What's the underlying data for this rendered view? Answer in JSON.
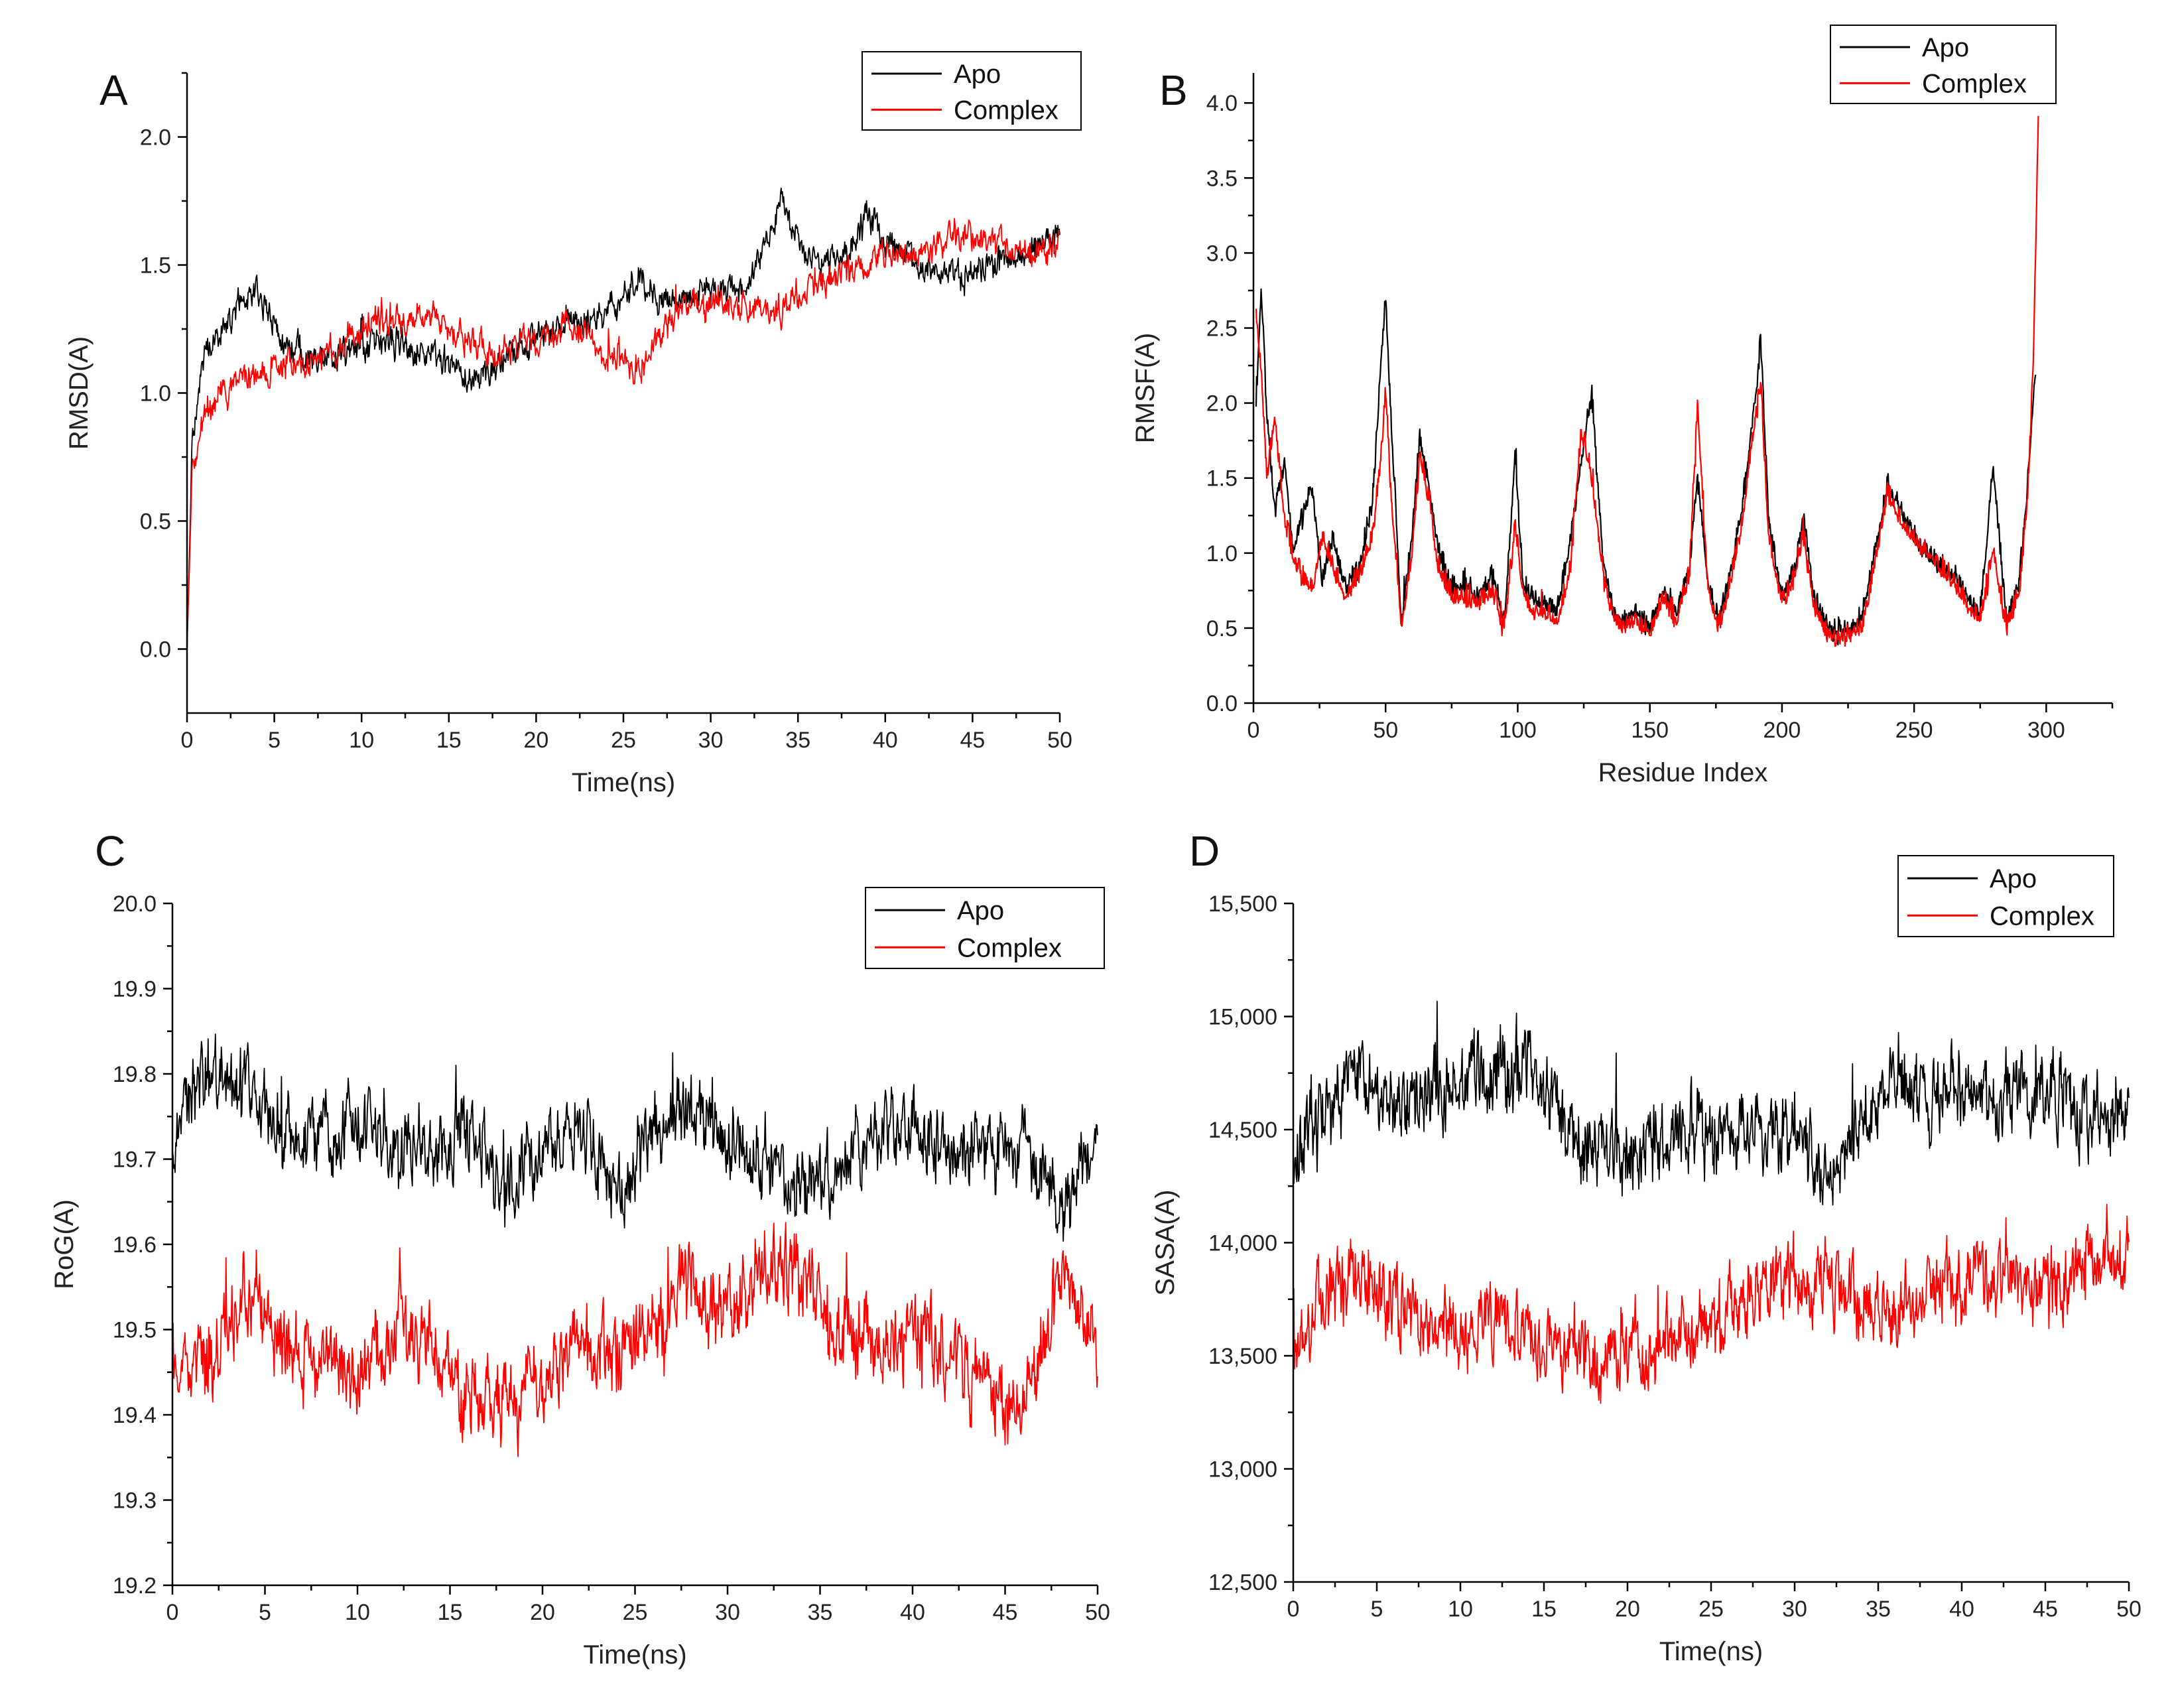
{
  "chart_data": [
    {
      "id": "A",
      "type": "line",
      "letter": "A",
      "xlabel": "Time(ns)",
      "ylabel": "RMSD(A)",
      "xlim": [
        0,
        50
      ],
      "ylim": [
        -0.25,
        2.25
      ],
      "xticks": [
        0,
        5,
        10,
        15,
        20,
        25,
        30,
        35,
        40,
        45,
        50
      ],
      "yticks": [
        0.0,
        0.5,
        1.0,
        1.5,
        2.0
      ],
      "ytick_labels": [
        "0.0",
        "0.5",
        "1.0",
        "1.5",
        "2.0"
      ],
      "legend": [
        "Apo",
        "Complex"
      ],
      "series": [
        {
          "name": "Apo",
          "color": "#000000",
          "noise": 0.06,
          "x": [
            0,
            0.3,
            1,
            2,
            3,
            4,
            5,
            6,
            8,
            10,
            12,
            14,
            16,
            18,
            20,
            22,
            24,
            26,
            27,
            28,
            30,
            32,
            33,
            34,
            35,
            36,
            38,
            39,
            40,
            42,
            44,
            46,
            48,
            50
          ],
          "y": [
            0.0,
            0.8,
            1.15,
            1.25,
            1.35,
            1.42,
            1.25,
            1.17,
            1.15,
            1.18,
            1.2,
            1.15,
            1.05,
            1.12,
            1.22,
            1.28,
            1.3,
            1.45,
            1.38,
            1.35,
            1.4,
            1.42,
            1.55,
            1.75,
            1.6,
            1.5,
            1.55,
            1.7,
            1.6,
            1.5,
            1.45,
            1.5,
            1.55,
            1.6
          ]
        },
        {
          "name": "Complex",
          "color": "#ff0000",
          "noise": 0.06,
          "x": [
            0,
            0.3,
            1,
            2,
            3,
            5,
            8,
            10,
            12,
            14,
            16,
            18,
            20,
            22,
            24,
            26,
            28,
            30,
            32,
            34,
            36,
            38,
            40,
            42,
            44,
            46,
            48,
            50
          ],
          "y": [
            0.0,
            0.7,
            0.92,
            0.98,
            1.05,
            1.1,
            1.15,
            1.25,
            1.28,
            1.3,
            1.22,
            1.15,
            1.2,
            1.28,
            1.15,
            1.1,
            1.32,
            1.35,
            1.32,
            1.33,
            1.42,
            1.48,
            1.55,
            1.55,
            1.62,
            1.6,
            1.55,
            1.58
          ]
        }
      ]
    },
    {
      "id": "B",
      "type": "line",
      "letter": "B",
      "xlabel": "Residue Index",
      "ylabel": "RMSF(A)",
      "xlim": [
        0,
        325
      ],
      "ylim": [
        0,
        4.2
      ],
      "xticks": [
        0,
        50,
        100,
        150,
        200,
        250,
        300
      ],
      "yticks": [
        0.0,
        0.5,
        1.0,
        1.5,
        2.0,
        2.5,
        3.0,
        3.5,
        4.0
      ],
      "ytick_labels": [
        "0.0",
        "0.5",
        "1.0",
        "1.5",
        "2.0",
        "2.5",
        "3.0",
        "3.5",
        "4.0"
      ],
      "legend": [
        "Apo",
        "Complex"
      ],
      "series": [
        {
          "name": "Apo",
          "color": "#000000",
          "noise": 0.15,
          "x": [
            1,
            3,
            5,
            8,
            12,
            15,
            18,
            22,
            26,
            30,
            35,
            40,
            45,
            48,
            50,
            52,
            56,
            60,
            63,
            66,
            70,
            75,
            80,
            85,
            90,
            95,
            99,
            102,
            106,
            110,
            115,
            120,
            124,
            128,
            132,
            136,
            140,
            145,
            150,
            155,
            160,
            165,
            168,
            172,
            176,
            180,
            185,
            189,
            192,
            195,
            200,
            205,
            208,
            212,
            216,
            220,
            225,
            230,
            235,
            240,
            245,
            250,
            255,
            260,
            265,
            270,
            275,
            280,
            285,
            290,
            293,
            296
          ],
          "y": [
            2.0,
            2.75,
            1.9,
            1.3,
            1.6,
            1.0,
            1.2,
            1.45,
            0.8,
            1.1,
            0.75,
            0.9,
            1.3,
            2.2,
            2.7,
            1.9,
            0.55,
            1.1,
            1.75,
            1.5,
            1.0,
            0.75,
            0.8,
            0.7,
            0.85,
            0.55,
            1.65,
            0.8,
            0.7,
            0.65,
            0.6,
            1.1,
            1.6,
            2.05,
            1.0,
            0.6,
            0.55,
            0.6,
            0.5,
            0.75,
            0.6,
            0.9,
            1.5,
            0.8,
            0.55,
            0.8,
            1.3,
            1.9,
            2.4,
            1.2,
            0.7,
            0.9,
            1.25,
            0.7,
            0.55,
            0.45,
            0.5,
            0.55,
            1.0,
            1.45,
            1.3,
            1.1,
            1.0,
            0.9,
            0.85,
            0.7,
            0.6,
            1.55,
            0.55,
            0.8,
            1.5,
            2.2
          ]
        },
        {
          "name": "Complex",
          "color": "#ff0000",
          "noise": 0.15,
          "x": [
            1,
            3,
            5,
            8,
            12,
            15,
            18,
            22,
            26,
            30,
            35,
            40,
            45,
            48,
            50,
            52,
            56,
            60,
            63,
            66,
            70,
            75,
            80,
            85,
            90,
            95,
            99,
            102,
            106,
            110,
            115,
            120,
            124,
            128,
            132,
            136,
            140,
            145,
            150,
            155,
            160,
            165,
            168,
            172,
            176,
            180,
            185,
            189,
            192,
            195,
            200,
            205,
            208,
            212,
            216,
            220,
            225,
            230,
            235,
            240,
            245,
            250,
            255,
            260,
            265,
            270,
            275,
            280,
            285,
            290,
            293,
            295,
            297
          ],
          "y": [
            2.6,
            2.2,
            1.5,
            1.9,
            1.2,
            1.0,
            0.85,
            0.75,
            1.1,
            0.9,
            0.7,
            0.85,
            1.1,
            1.6,
            2.1,
            1.4,
            0.5,
            1.0,
            1.65,
            1.4,
            0.9,
            0.7,
            0.7,
            0.65,
            0.75,
            0.5,
            1.2,
            0.75,
            0.6,
            0.6,
            0.55,
            0.9,
            1.8,
            1.5,
            0.9,
            0.55,
            0.5,
            0.55,
            0.45,
            0.7,
            0.55,
            0.85,
            2.0,
            0.75,
            0.5,
            0.75,
            1.2,
            1.8,
            2.1,
            1.1,
            0.65,
            0.85,
            1.15,
            0.65,
            0.5,
            0.4,
            0.45,
            0.5,
            0.9,
            1.4,
            1.2,
            1.1,
            1.0,
            0.9,
            0.8,
            0.65,
            0.55,
            1.0,
            0.5,
            0.75,
            1.4,
            2.2,
            3.9
          ]
        }
      ]
    },
    {
      "id": "C",
      "type": "line",
      "letter": "C",
      "xlabel": "Time(ns)",
      "ylabel": "RoG(A)",
      "xlim": [
        0,
        50
      ],
      "ylim": [
        19.2,
        20.0
      ],
      "xticks": [
        0,
        5,
        10,
        15,
        20,
        25,
        30,
        35,
        40,
        45,
        50
      ],
      "yticks": [
        19.2,
        19.3,
        19.4,
        19.5,
        19.6,
        19.7,
        19.8,
        19.9,
        20.0
      ],
      "ytick_labels": [
        "19.2",
        "19.3",
        "19.4",
        "19.5",
        "19.6",
        "19.7",
        "19.8",
        "19.9",
        "20.0"
      ],
      "legend": [
        "Apo",
        "Complex"
      ],
      "series": [
        {
          "name": "Apo",
          "color": "#000000",
          "noise": 0.045,
          "x": [
            0,
            2,
            4,
            6,
            8,
            10,
            12,
            14,
            16,
            18,
            20,
            22,
            24,
            26,
            28,
            30,
            32,
            34,
            36,
            38,
            40,
            42,
            44,
            46,
            48,
            50
          ],
          "y": [
            19.72,
            19.8,
            19.78,
            19.72,
            19.73,
            19.74,
            19.72,
            19.71,
            19.74,
            19.66,
            19.72,
            19.74,
            19.66,
            19.73,
            19.76,
            19.72,
            19.7,
            19.67,
            19.7,
            19.72,
            19.74,
            19.7,
            19.72,
            19.7,
            19.64,
            19.72
          ]
        },
        {
          "name": "Complex",
          "color": "#ff0000",
          "noise": 0.05,
          "x": [
            0,
            2,
            4,
            6,
            8,
            10,
            12,
            14,
            16,
            18,
            20,
            22,
            24,
            26,
            28,
            30,
            32,
            34,
            36,
            38,
            40,
            42,
            44,
            46,
            48,
            50
          ],
          "y": [
            19.47,
            19.46,
            19.55,
            19.48,
            19.46,
            19.45,
            19.5,
            19.48,
            19.42,
            19.43,
            19.43,
            19.5,
            19.46,
            19.5,
            19.55,
            19.52,
            19.58,
            19.56,
            19.5,
            19.48,
            19.5,
            19.47,
            19.42,
            19.4,
            19.56,
            19.48
          ]
        }
      ]
    },
    {
      "id": "D",
      "type": "line",
      "letter": "D",
      "xlabel": "Time(ns)",
      "ylabel": "SASA(A)",
      "xlim": [
        0,
        50
      ],
      "ylim": [
        12500,
        15500
      ],
      "xticks": [
        0,
        5,
        10,
        15,
        20,
        25,
        30,
        35,
        40,
        45,
        50
      ],
      "yticks": [
        12500,
        13000,
        13500,
        14000,
        14500,
        15000,
        15500
      ],
      "ytick_labels": [
        "12,500",
        "13,000",
        "13,500",
        "14,000",
        "14,500",
        "15,000",
        "15,500"
      ],
      "legend": [
        "Apo",
        "Complex"
      ],
      "series": [
        {
          "name": "Apo",
          "color": "#000000",
          "noise": 180,
          "x": [
            0,
            2,
            4,
            6,
            8,
            10,
            12,
            14,
            16,
            18,
            20,
            22,
            24,
            26,
            28,
            30,
            32,
            34,
            36,
            38,
            40,
            42,
            44,
            46,
            48,
            50
          ],
          "y": [
            14400,
            14600,
            14750,
            14600,
            14650,
            14720,
            14750,
            14780,
            14600,
            14350,
            14400,
            14450,
            14500,
            14480,
            14450,
            14500,
            14250,
            14550,
            14700,
            14650,
            14680,
            14650,
            14700,
            14650,
            14550,
            14550
          ]
        },
        {
          "name": "Complex",
          "color": "#ff0000",
          "noise": 170,
          "x": [
            0,
            2,
            4,
            6,
            8,
            10,
            12,
            14,
            16,
            18,
            20,
            22,
            24,
            26,
            28,
            30,
            32,
            34,
            36,
            38,
            40,
            42,
            44,
            46,
            48,
            50
          ],
          "y": [
            13550,
            13750,
            13850,
            13750,
            13650,
            13600,
            13650,
            13600,
            13550,
            13500,
            13500,
            13550,
            13600,
            13700,
            13800,
            13850,
            13850,
            13750,
            13700,
            13800,
            13850,
            13850,
            13800,
            13800,
            13950,
            14000
          ]
        }
      ]
    }
  ]
}
